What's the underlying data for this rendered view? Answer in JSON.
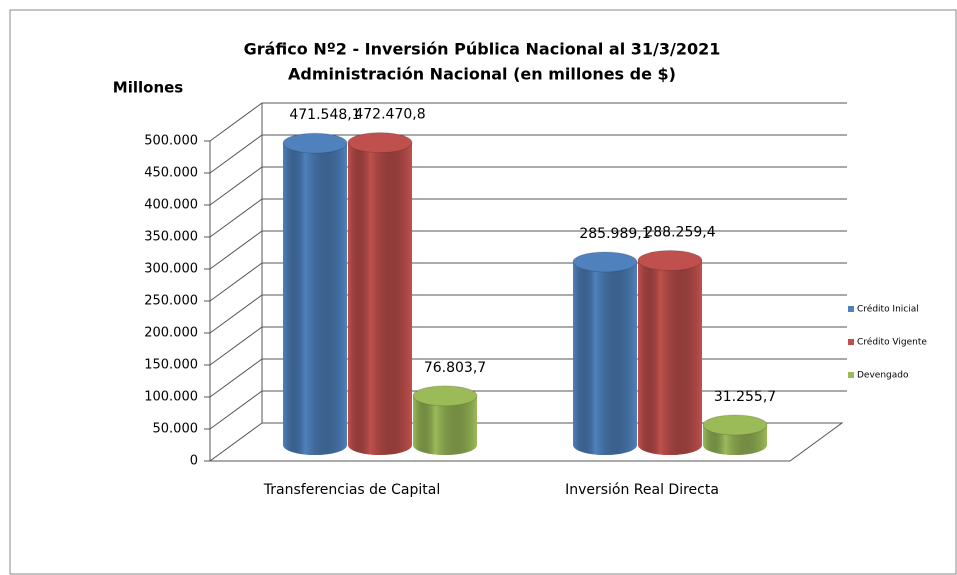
{
  "chart_data": {
    "type": "bar3d",
    "title": "Gráfico Nº2 - Inversión Pública Nacional al 31/3/2021",
    "subtitle": "Administración Nacional (en millones de $)",
    "y_label": "Millones",
    "categories": [
      "Transferencias de Capital",
      "Inversión Real Directa"
    ],
    "series": [
      {
        "name": "Crédito Inicial",
        "color": "#4f81bd",
        "values": [
          471548.1,
          285989.1
        ],
        "value_labels": [
          "471.548,1",
          "285.989,1"
        ]
      },
      {
        "name": "Crédito Vigente",
        "color": "#c0504d",
        "values": [
          472470.8,
          288259.4
        ],
        "value_labels": [
          "472.470,8",
          "288.259,4"
        ]
      },
      {
        "name": "Devengado",
        "color": "#9bbb59",
        "values": [
          76803.7,
          31255.7
        ],
        "value_labels": [
          "76.803,7",
          "31.255,7"
        ]
      }
    ],
    "ylim": [
      0,
      500000
    ],
    "yticks": [
      0,
      {
        "value": 50000,
        "label": "50.000"
      },
      {
        "value": 100000,
        "label": "100.000"
      },
      {
        "value": 150000,
        "label": "150.000"
      },
      {
        "value": 200000,
        "label": "200.000"
      },
      {
        "value": 250000,
        "label": "250.000"
      },
      {
        "value": 300000,
        "label": "300.000"
      },
      {
        "value": 350000,
        "label": "350.000"
      },
      {
        "value": 400000,
        "label": "400.000"
      },
      {
        "value": 450000,
        "label": "450.000"
      },
      {
        "value": 500000,
        "label": "500.000"
      }
    ],
    "grid": true,
    "legend": "right"
  }
}
